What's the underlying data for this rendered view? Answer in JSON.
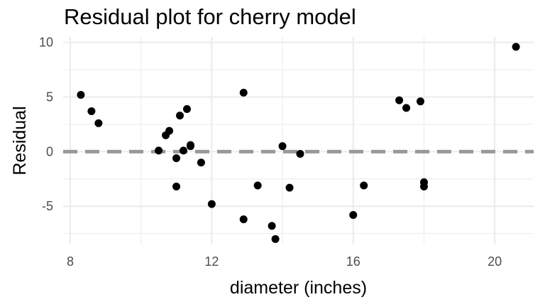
{
  "chart_data": {
    "type": "scatter",
    "title": "Residual plot for cherry model",
    "xlabel": "diameter (inches)",
    "ylabel": "Residual",
    "xlim": [
      7.8,
      21.1
    ],
    "ylim": [
      -8.5,
      10.5
    ],
    "x_ticks": [
      8,
      12,
      16,
      20
    ],
    "x_tick_labels": [
      "8",
      "12",
      "16",
      "20"
    ],
    "x_minor_ticks": [
      10,
      14,
      18
    ],
    "y_ticks": [
      -5,
      0,
      5,
      10
    ],
    "y_tick_labels": [
      "-5",
      "0",
      "5",
      "10"
    ],
    "y_minor_ticks": [
      -7.5,
      -2.5,
      2.5,
      7.5
    ],
    "grid": true,
    "legend": "none",
    "reference_line": {
      "y": 0,
      "style": "dashed",
      "color": "#999999"
    },
    "point_color": "#000000",
    "grid_color": "#ebebeb",
    "points": [
      {
        "x": 8.3,
        "y": 5.2
      },
      {
        "x": 8.6,
        "y": 3.7
      },
      {
        "x": 8.8,
        "y": 2.6
      },
      {
        "x": 10.5,
        "y": 0.1
      },
      {
        "x": 10.7,
        "y": 1.5
      },
      {
        "x": 10.8,
        "y": 1.9
      },
      {
        "x": 11.0,
        "y": -0.6
      },
      {
        "x": 11.0,
        "y": -3.2
      },
      {
        "x": 11.1,
        "y": 3.3
      },
      {
        "x": 11.2,
        "y": 0.1
      },
      {
        "x": 11.3,
        "y": 3.9
      },
      {
        "x": 11.4,
        "y": 0.5
      },
      {
        "x": 11.4,
        "y": 0.6
      },
      {
        "x": 11.7,
        "y": -1.0
      },
      {
        "x": 12.0,
        "y": -4.8
      },
      {
        "x": 12.9,
        "y": 5.4
      },
      {
        "x": 12.9,
        "y": -6.2
      },
      {
        "x": 13.3,
        "y": -3.1
      },
      {
        "x": 13.7,
        "y": -6.8
      },
      {
        "x": 13.8,
        "y": -8.0
      },
      {
        "x": 14.0,
        "y": 0.5
      },
      {
        "x": 14.2,
        "y": -3.3
      },
      {
        "x": 14.5,
        "y": -0.2
      },
      {
        "x": 16.0,
        "y": -5.8
      },
      {
        "x": 16.3,
        "y": -3.1
      },
      {
        "x": 17.3,
        "y": 4.7
      },
      {
        "x": 17.5,
        "y": 4.0
      },
      {
        "x": 17.9,
        "y": 4.6
      },
      {
        "x": 18.0,
        "y": -2.8
      },
      {
        "x": 18.0,
        "y": -3.2
      },
      {
        "x": 20.6,
        "y": 9.6
      }
    ]
  }
}
